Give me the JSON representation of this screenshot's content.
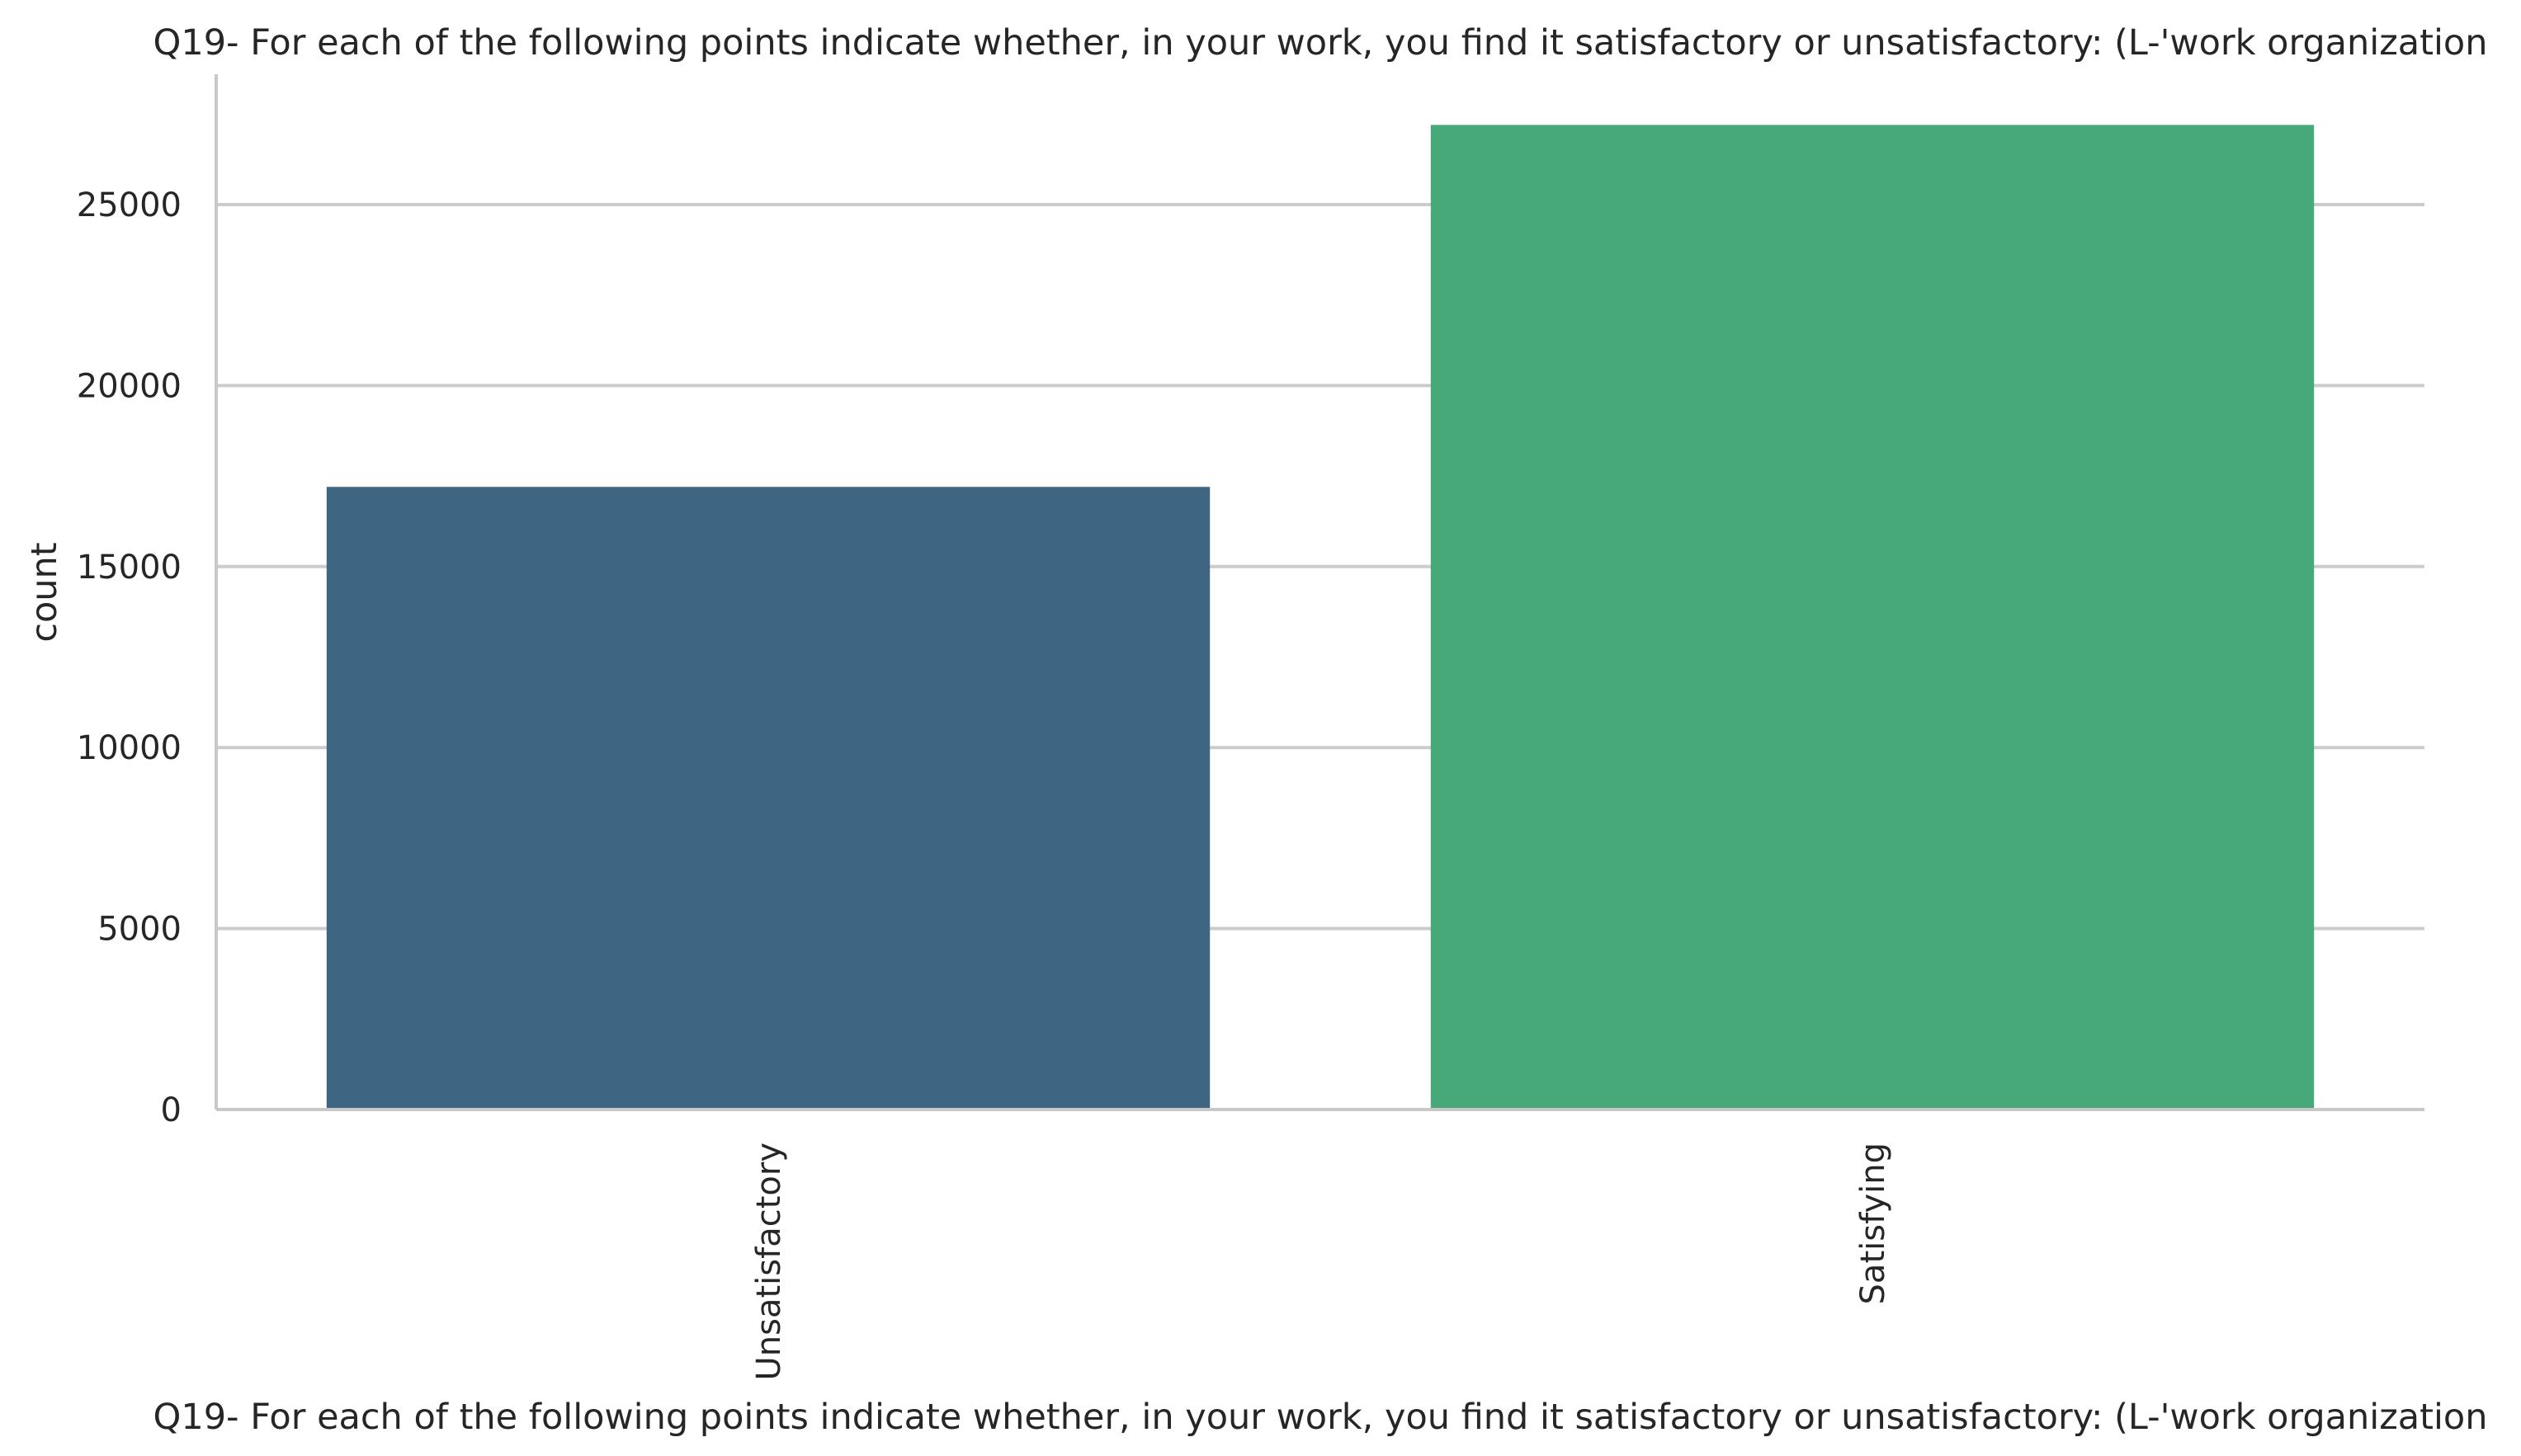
{
  "chart_data": {
    "type": "bar",
    "title": "Q19- For each of the following points indicate whether, in your work, you find it satisfactory or unsatisfactory: (L-'work organization",
    "xlabel": "Q19- For each of the following points indicate whether, in your work, you find it satisfactory or unsatisfactory: (L-'work organization",
    "ylabel": "count",
    "categories": [
      "Unsatisfactory",
      "Satisfying"
    ],
    "values": [
      17200,
      27200
    ],
    "colors": [
      "#3e6682",
      "#47a879"
    ],
    "ylim": [
      0,
      28600
    ],
    "yticks": [
      0,
      5000,
      10000,
      15000,
      20000,
      25000
    ],
    "ytick_labels": [
      "0",
      "5000",
      "10000",
      "15000",
      "20000",
      "25000"
    ],
    "grid": "horizontal",
    "legend": "none"
  }
}
